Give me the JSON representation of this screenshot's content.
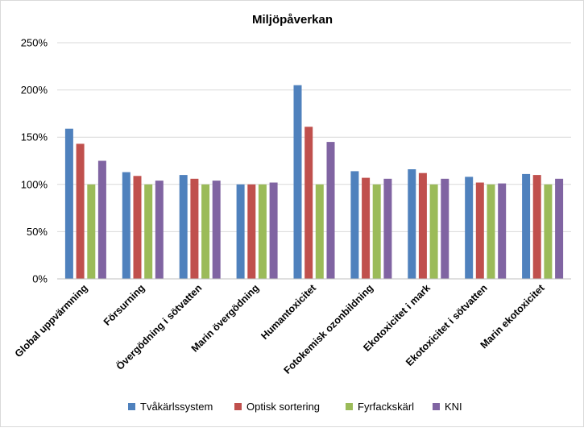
{
  "chart_data": {
    "type": "bar",
    "title": "Miljöpåverkan",
    "xlabel": "",
    "ylabel": "",
    "ylim": [
      0,
      250
    ],
    "y_ticks": [
      "0%",
      "50%",
      "100%",
      "150%",
      "200%",
      "250%"
    ],
    "y_tick_values": [
      0,
      50,
      100,
      150,
      200,
      250
    ],
    "grid": true,
    "legend_position": "bottom",
    "categories": [
      "Global uppvärmning",
      "Försurning",
      "Övergödning i sötvatten",
      "Marin övergödning",
      "Humantoxicitet",
      "Fotokemisk ozonbildning",
      "Ekotoxicitet i mark",
      "Ekotoxicitet i sötvatten",
      "Marin ekotoxicitet"
    ],
    "series": [
      {
        "name": "Tvåkärlssystem",
        "color": "#4f81bd",
        "values": [
          159,
          113,
          110,
          100,
          205,
          114,
          116,
          108,
          111
        ]
      },
      {
        "name": "Optisk sortering",
        "color": "#c0504d",
        "values": [
          143,
          109,
          106,
          100,
          161,
          107,
          112,
          102,
          110
        ]
      },
      {
        "name": "Fyrfackskärl",
        "color": "#9bbb59",
        "values": [
          100,
          100,
          100,
          100,
          100,
          100,
          100,
          100,
          100
        ]
      },
      {
        "name": "KNI",
        "color": "#8064a2",
        "values": [
          125,
          104,
          104,
          102,
          145,
          106,
          106,
          101,
          106
        ]
      }
    ]
  }
}
